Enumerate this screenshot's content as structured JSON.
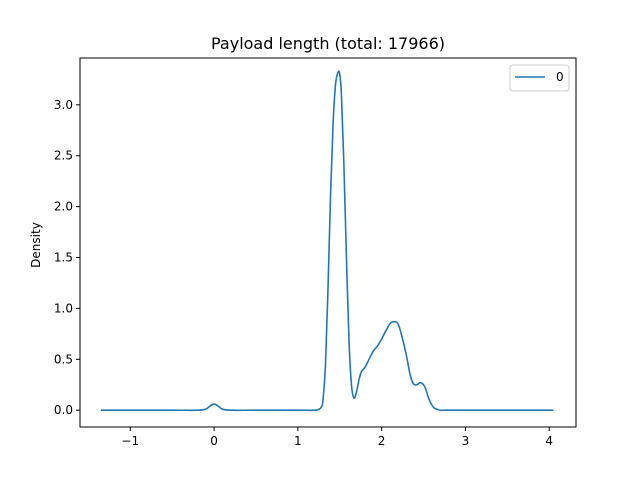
{
  "chart_data": {
    "type": "line",
    "title": "Payload length (total: 17966)",
    "xlabel": "",
    "ylabel": "Density",
    "xlim": [
      -1.6,
      4.32
    ],
    "ylim": [
      -0.165,
      3.46
    ],
    "xticks": [
      -1,
      0,
      1,
      2,
      3,
      4
    ],
    "xtick_labels": [
      "−1",
      "0",
      "1",
      "2",
      "3",
      "4"
    ],
    "yticks": [
      0.0,
      0.5,
      1.0,
      1.5,
      2.0,
      2.5,
      3.0
    ],
    "ytick_labels": [
      "0.0",
      "0.5",
      "1.0",
      "1.5",
      "2.0",
      "2.5",
      "3.0"
    ],
    "grid": false,
    "legend_position": "top-right",
    "series": [
      {
        "name": "0",
        "color": "#1f77b4",
        "x": [
          -1.35,
          -0.5,
          -0.2,
          -0.1,
          -0.05,
          0.0,
          0.05,
          0.1,
          0.2,
          0.5,
          1.0,
          1.2,
          1.25,
          1.28,
          1.3,
          1.33,
          1.36,
          1.39,
          1.42,
          1.45,
          1.48,
          1.5,
          1.52,
          1.55,
          1.58,
          1.61,
          1.64,
          1.67,
          1.7,
          1.73,
          1.76,
          1.8,
          1.85,
          1.9,
          1.95,
          2.0,
          2.05,
          2.1,
          2.15,
          2.2,
          2.25,
          2.3,
          2.34,
          2.38,
          2.42,
          2.46,
          2.5,
          2.53,
          2.56,
          2.6,
          2.63,
          2.66,
          2.7,
          2.75,
          2.8,
          2.9,
          3.0,
          3.5,
          4.05
        ],
        "y": [
          0.0,
          0.0,
          0.0,
          0.01,
          0.04,
          0.06,
          0.04,
          0.01,
          0.0,
          0.0,
          0.0,
          0.0,
          0.01,
          0.03,
          0.1,
          0.45,
          1.2,
          2.1,
          2.8,
          3.2,
          3.32,
          3.3,
          3.1,
          2.4,
          1.5,
          0.7,
          0.25,
          0.12,
          0.18,
          0.3,
          0.38,
          0.42,
          0.5,
          0.58,
          0.63,
          0.7,
          0.78,
          0.85,
          0.87,
          0.84,
          0.7,
          0.52,
          0.35,
          0.26,
          0.25,
          0.27,
          0.25,
          0.2,
          0.12,
          0.05,
          0.02,
          0.01,
          0.0,
          0.0,
          0.0,
          0.0,
          0.0,
          0.0,
          0.0
        ]
      }
    ]
  }
}
